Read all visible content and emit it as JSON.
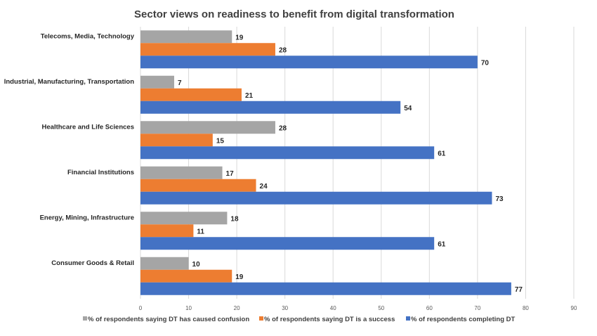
{
  "chart_data": {
    "type": "bar",
    "orientation": "horizontal",
    "title": "Sector views on readiness to benefit from digital transformation",
    "categories": [
      "Telecoms, Media, Technology",
      "Industrial, Manufacturing, Transportation",
      "Healthcare and Life Sciences",
      "Financial Institutions",
      "Energy, Mining, Infrastructure",
      "Consumer Goods & Retail"
    ],
    "series": [
      {
        "name": "% of respondents saying DT has caused confusion",
        "color": "#a5a5a5",
        "values": [
          19,
          7,
          28,
          17,
          18,
          10
        ]
      },
      {
        "name": "% of respondents saying DT is a success",
        "color": "#ed7d31",
        "values": [
          28,
          21,
          15,
          24,
          11,
          19
        ]
      },
      {
        "name": "% of respondents completing DT",
        "color": "#4472c4",
        "values": [
          70,
          54,
          61,
          73,
          61,
          77
        ]
      }
    ],
    "xlim": [
      0,
      90
    ],
    "xticks": [
      0,
      10,
      20,
      30,
      40,
      50,
      60,
      70,
      80,
      90
    ],
    "xlabel": "",
    "ylabel": "",
    "grid": true,
    "legend_position": "bottom",
    "data_labels": true
  }
}
